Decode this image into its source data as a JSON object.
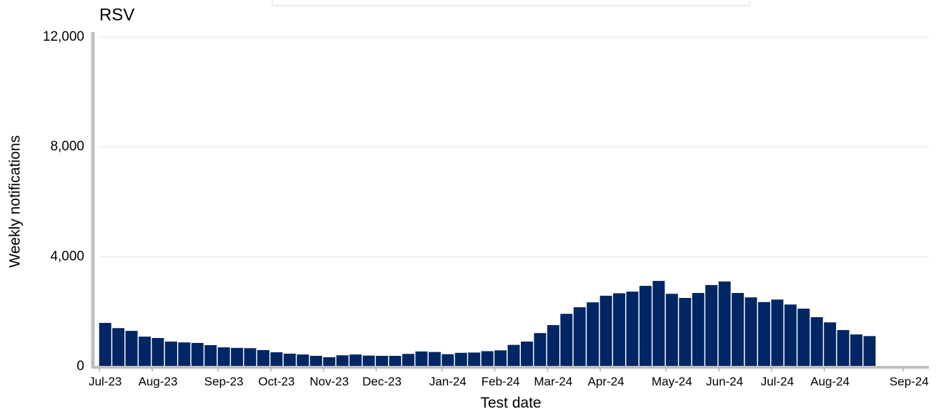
{
  "chart_data": {
    "type": "bar",
    "title": "RSV",
    "xlabel": "Test date",
    "ylabel": "Weekly notifications",
    "categories": [
      "Jul-23",
      null,
      null,
      null,
      "Aug-23",
      null,
      null,
      null,
      null,
      "Sep-23",
      null,
      null,
      null,
      "Oct-23",
      null,
      null,
      null,
      "Nov-23",
      null,
      null,
      null,
      "Dec-23",
      null,
      null,
      null,
      null,
      "Jan-24",
      null,
      null,
      null,
      "Feb-24",
      null,
      null,
      null,
      "Mar-24",
      null,
      null,
      null,
      "Apr-24",
      null,
      null,
      null,
      null,
      "May-24",
      null,
      null,
      null,
      "Jun-24",
      null,
      null,
      null,
      "Jul-24",
      null,
      null,
      null,
      "Aug-24",
      null,
      null,
      null,
      null,
      null,
      "Sep-24",
      null
    ],
    "values": [
      1590,
      1400,
      1300,
      1090,
      1040,
      910,
      880,
      860,
      780,
      700,
      680,
      670,
      600,
      520,
      470,
      440,
      390,
      340,
      410,
      440,
      400,
      390,
      390,
      460,
      550,
      530,
      450,
      500,
      510,
      560,
      590,
      790,
      910,
      1220,
      1510,
      1920,
      2160,
      2340,
      2580,
      2670,
      2730,
      2940,
      3120,
      2650,
      2500,
      2680,
      2970,
      3100,
      2680,
      2520,
      2350,
      2440,
      2260,
      2110,
      1800,
      1610,
      1330,
      1170,
      1110,
      null,
      null,
      null,
      null
    ],
    "color": "#002664",
    "ylim": [
      0,
      12000
    ],
    "yticks": [
      {
        "value": 0,
        "label": "0"
      },
      {
        "value": 4000,
        "label": "4,000"
      },
      {
        "value": 8000,
        "label": "8,000"
      },
      {
        "value": 12000,
        "label": "12,000"
      }
    ],
    "grid": true
  }
}
